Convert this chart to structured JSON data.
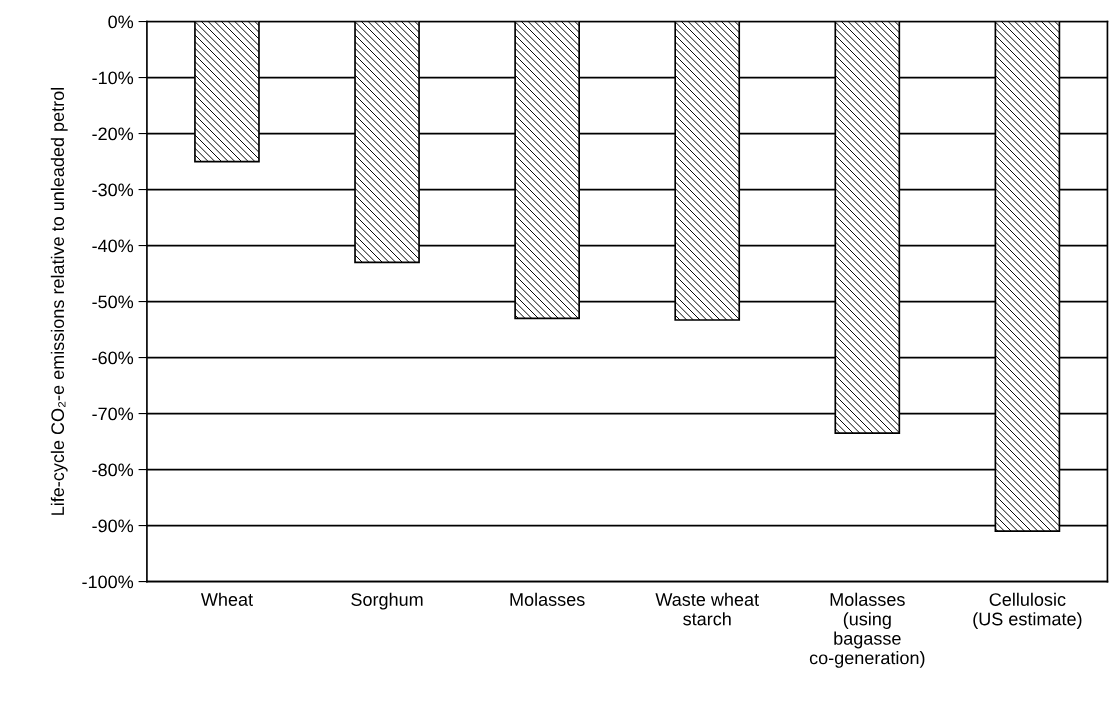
{
  "chart_data": {
    "type": "bar",
    "ylabel": "Life-cycle CO₂-e emissions relative to unleaded petrol",
    "categories": [
      "Wheat",
      "Sorghum",
      "Molasses",
      "Waste wheat\nstarch",
      "Molasses\n(using\nbagasse\nco-generation)",
      "Cellulosic\n(US estimate)"
    ],
    "values": [
      -25,
      -43,
      -53,
      -53.3,
      -73.5,
      -91
    ],
    "color": "#000000",
    "ylim": [
      -100,
      0
    ],
    "yticks": [
      {
        "value": 0,
        "label": "0%"
      },
      {
        "value": -10,
        "label": "-10%"
      },
      {
        "value": -20,
        "label": "-20%"
      },
      {
        "value": -30,
        "label": "-30%"
      },
      {
        "value": -40,
        "label": "-40%"
      },
      {
        "value": -50,
        "label": "-50%"
      },
      {
        "value": -60,
        "label": "-60%"
      },
      {
        "value": -70,
        "label": "-70%"
      },
      {
        "value": -80,
        "label": "-80%"
      },
      {
        "value": -90,
        "label": "-90%"
      },
      {
        "value": -100,
        "label": "-100%"
      }
    ],
    "grid": "y"
  }
}
